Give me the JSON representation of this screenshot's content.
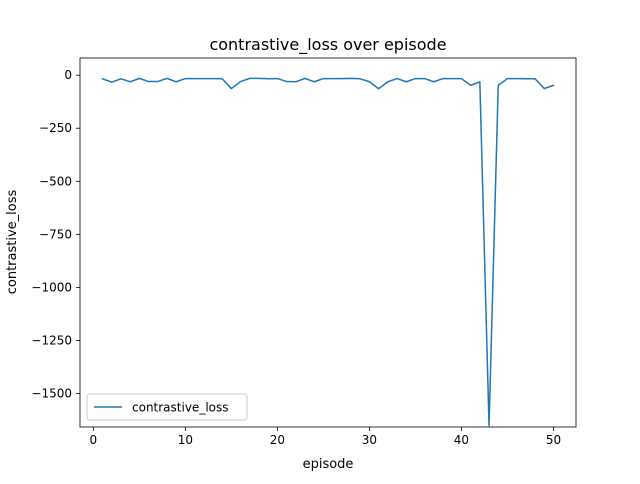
{
  "chart_data": {
    "type": "line",
    "title": "contrastive_loss over episode",
    "xlabel": "episode",
    "ylabel": "contrastive_loss",
    "xlim": [
      -1.45,
      52.45
    ],
    "ylim": [
      -1658,
      81
    ],
    "xticks": [
      0,
      10,
      20,
      30,
      40,
      50
    ],
    "yticks": [
      0,
      -250,
      -500,
      -750,
      -1000,
      -1250,
      -1500
    ],
    "xtick_labels": [
      "0",
      "10",
      "20",
      "30",
      "40",
      "50"
    ],
    "ytick_labels": [
      "0",
      "−250",
      "−500",
      "−750",
      "−1000",
      "−1250",
      "−1500"
    ],
    "grid": false,
    "legend_position": "lower left",
    "series": [
      {
        "name": "contrastive_loss",
        "color": "#1f77b4",
        "x": [
          1,
          2,
          3,
          4,
          5,
          6,
          7,
          8,
          9,
          10,
          11,
          12,
          13,
          14,
          15,
          16,
          17,
          18,
          19,
          20,
          21,
          22,
          23,
          24,
          25,
          26,
          27,
          28,
          29,
          30,
          31,
          32,
          33,
          34,
          35,
          36,
          37,
          38,
          39,
          40,
          41,
          42,
          43,
          44,
          45,
          46,
          47,
          48,
          49,
          50
        ],
        "y": [
          -17,
          -33,
          -17,
          -31,
          -15,
          -30,
          -30,
          -15,
          -31,
          -16,
          -16,
          -16,
          -16,
          -17,
          -63,
          -30,
          -15,
          -15,
          -17,
          -16,
          -30,
          -31,
          -15,
          -31,
          -16,
          -16,
          -16,
          -15,
          -17,
          -31,
          -64,
          -31,
          -16,
          -31,
          -16,
          -16,
          -31,
          -16,
          -16,
          -16,
          -48,
          -31,
          -1652,
          -48,
          -16,
          -16,
          -17,
          -17,
          -63,
          -48
        ]
      }
    ]
  }
}
